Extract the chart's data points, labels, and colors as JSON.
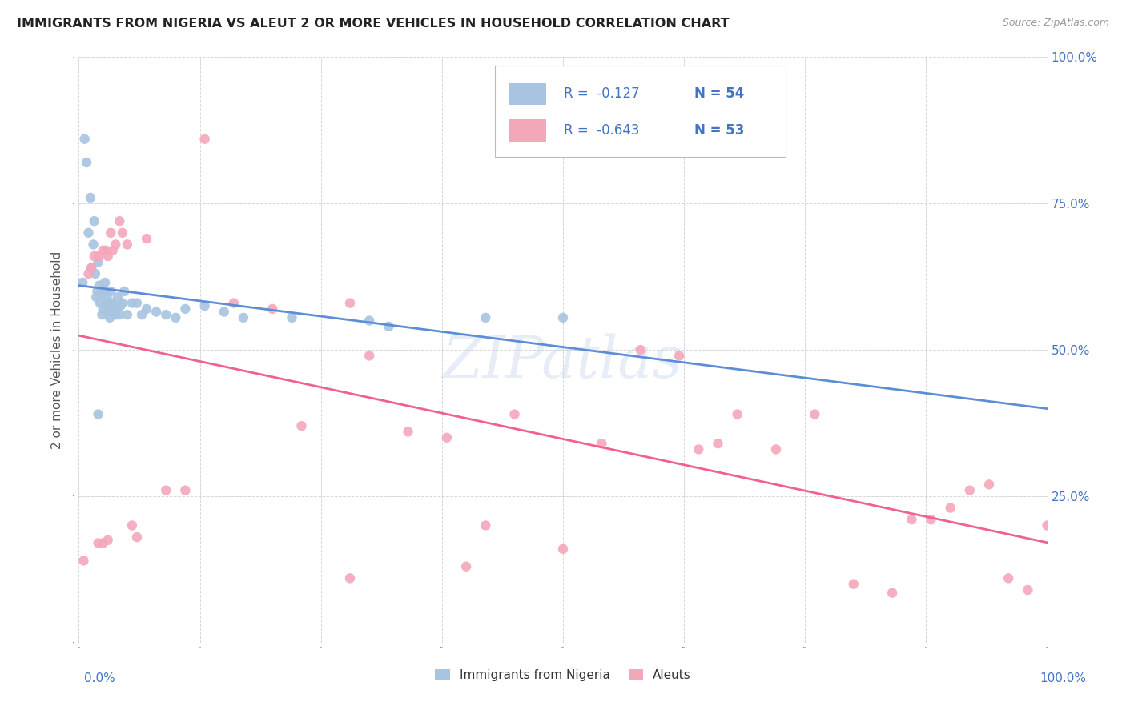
{
  "title": "IMMIGRANTS FROM NIGERIA VS ALEUT 2 OR MORE VEHICLES IN HOUSEHOLD CORRELATION CHART",
  "source": "Source: ZipAtlas.com",
  "ylabel": "2 or more Vehicles in Household",
  "color_nigeria": "#a8c4e0",
  "color_aleut": "#f4a7b9",
  "color_line_nigeria": "#5b8ed6",
  "color_line_aleut": "#f06090",
  "color_axis_blue": "#4472c4",
  "xlim": [
    0.0,
    1.0
  ],
  "ylim": [
    0.0,
    1.0
  ],
  "nigeria_x": [
    0.004,
    0.006,
    0.008,
    0.01,
    0.012,
    0.013,
    0.015,
    0.016,
    0.017,
    0.018,
    0.019,
    0.02,
    0.021,
    0.022,
    0.023,
    0.024,
    0.025,
    0.026,
    0.027,
    0.028,
    0.029,
    0.03,
    0.031,
    0.032,
    0.033,
    0.034,
    0.035,
    0.036,
    0.037,
    0.038,
    0.039,
    0.04,
    0.042,
    0.043,
    0.045,
    0.047,
    0.05,
    0.055,
    0.06,
    0.065,
    0.07,
    0.08,
    0.09,
    0.1,
    0.11,
    0.13,
    0.15,
    0.17,
    0.22,
    0.3,
    0.32,
    0.42,
    0.5,
    0.02
  ],
  "nigeria_y": [
    0.615,
    0.86,
    0.82,
    0.7,
    0.76,
    0.64,
    0.68,
    0.72,
    0.63,
    0.59,
    0.6,
    0.65,
    0.61,
    0.58,
    0.595,
    0.56,
    0.57,
    0.6,
    0.615,
    0.58,
    0.59,
    0.565,
    0.58,
    0.555,
    0.6,
    0.58,
    0.565,
    0.57,
    0.575,
    0.56,
    0.57,
    0.59,
    0.56,
    0.575,
    0.58,
    0.6,
    0.56,
    0.58,
    0.58,
    0.56,
    0.57,
    0.565,
    0.56,
    0.555,
    0.57,
    0.575,
    0.565,
    0.555,
    0.555,
    0.55,
    0.54,
    0.555,
    0.555,
    0.39
  ],
  "aleut_x": [
    0.005,
    0.01,
    0.013,
    0.016,
    0.02,
    0.025,
    0.028,
    0.03,
    0.033,
    0.035,
    0.038,
    0.042,
    0.045,
    0.05,
    0.055,
    0.06,
    0.07,
    0.09,
    0.11,
    0.13,
    0.16,
    0.2,
    0.23,
    0.28,
    0.3,
    0.34,
    0.38,
    0.42,
    0.45,
    0.5,
    0.54,
    0.58,
    0.62,
    0.64,
    0.66,
    0.68,
    0.72,
    0.76,
    0.8,
    0.84,
    0.86,
    0.88,
    0.9,
    0.92,
    0.94,
    0.96,
    0.98,
    1.0,
    0.02,
    0.025,
    0.03,
    0.28,
    0.4
  ],
  "aleut_y": [
    0.14,
    0.63,
    0.64,
    0.66,
    0.66,
    0.67,
    0.67,
    0.66,
    0.7,
    0.67,
    0.68,
    0.72,
    0.7,
    0.68,
    0.2,
    0.18,
    0.69,
    0.26,
    0.26,
    0.86,
    0.58,
    0.57,
    0.37,
    0.58,
    0.49,
    0.36,
    0.35,
    0.2,
    0.39,
    0.16,
    0.34,
    0.5,
    0.49,
    0.33,
    0.34,
    0.39,
    0.33,
    0.39,
    0.1,
    0.085,
    0.21,
    0.21,
    0.23,
    0.26,
    0.27,
    0.11,
    0.09,
    0.2,
    0.17,
    0.17,
    0.175,
    0.11,
    0.13
  ]
}
